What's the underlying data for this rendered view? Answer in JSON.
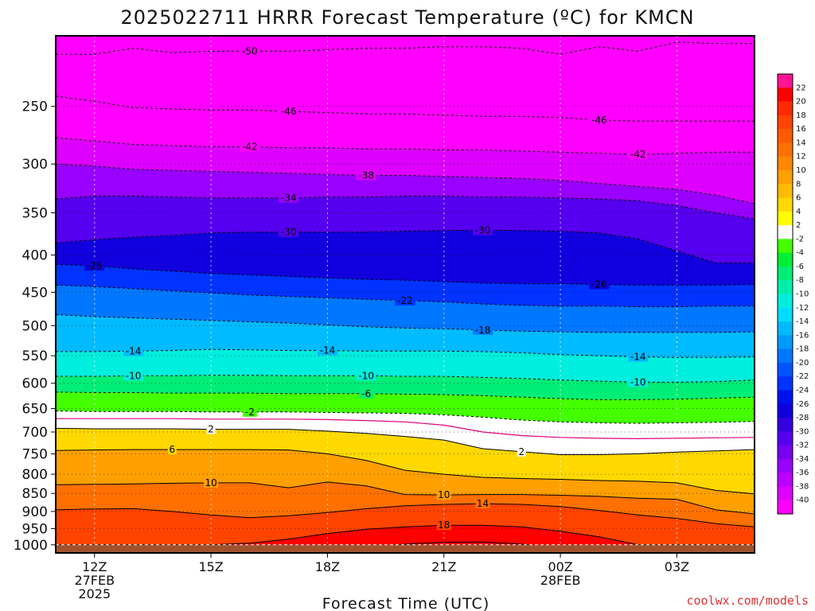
{
  "title": "2025022711 HRRR Forecast Temperature (ºC) for KMCN",
  "xlabel": "Forecast Time (UTC)",
  "credit": "coolwx.com/models",
  "chart_data": {
    "type": "heatmap",
    "title": "2025022711 HRRR Forecast Temperature (ºC) for KMCN",
    "xlabel": "Forecast Time (UTC)",
    "ylabel": "",
    "x_ticks": [
      {
        "hours": 1,
        "lines": [
          "12Z",
          "27FEB",
          "2025"
        ]
      },
      {
        "hours": 4,
        "lines": [
          "15Z"
        ]
      },
      {
        "hours": 7,
        "lines": [
          "18Z"
        ]
      },
      {
        "hours": 10,
        "lines": [
          "21Z"
        ]
      },
      {
        "hours": 13,
        "lines": [
          "00Z",
          "28FEB"
        ]
      },
      {
        "hours": 16,
        "lines": [
          "03Z"
        ]
      }
    ],
    "xlim_hours": [
      0,
      18
    ],
    "y_ticks": [
      250,
      300,
      350,
      400,
      450,
      500,
      550,
      600,
      650,
      700,
      750,
      800,
      850,
      900,
      950,
      1000
    ],
    "ylim_hpa": [
      200,
      1026
    ],
    "y_scale": "log",
    "colorbar": [
      {
        "label": "22",
        "color": "#ff1493"
      },
      {
        "label": "20",
        "color": "#ff0000"
      },
      {
        "label": "18",
        "color": "#ff2a00"
      },
      {
        "label": "16",
        "color": "#ff4400"
      },
      {
        "label": "14",
        "color": "#ff5a00"
      },
      {
        "label": "12",
        "color": "#ff7000"
      },
      {
        "label": "10",
        "color": "#ff8800"
      },
      {
        "label": "8",
        "color": "#ffa000"
      },
      {
        "label": "6",
        "color": "#ffbb00"
      },
      {
        "label": "4",
        "color": "#ffd800"
      },
      {
        "label": "2",
        "color": "#ffff00"
      },
      {
        "label": "-2",
        "color": "#ffffff"
      },
      {
        "label": "-4",
        "color": "#44ff00"
      },
      {
        "label": "-6",
        "color": "#00ee33"
      },
      {
        "label": "-8",
        "color": "#00ee77"
      },
      {
        "label": "-10",
        "color": "#00eeaa"
      },
      {
        "label": "-12",
        "color": "#00eedd"
      },
      {
        "label": "-14",
        "color": "#00ddff"
      },
      {
        "label": "-16",
        "color": "#00bbff"
      },
      {
        "label": "-18",
        "color": "#0099ff"
      },
      {
        "label": "-20",
        "color": "#0077ff"
      },
      {
        "label": "-22",
        "color": "#0055ff"
      },
      {
        "label": "-24",
        "color": "#0033ff"
      },
      {
        "label": "-26",
        "color": "#0011ee"
      },
      {
        "label": "-28",
        "color": "#1100dd"
      },
      {
        "label": "-30",
        "color": "#3300dd"
      },
      {
        "label": "-32",
        "color": "#5500ee"
      },
      {
        "label": "-34",
        "color": "#7700ee"
      },
      {
        "label": "-36",
        "color": "#9900ff"
      },
      {
        "label": "-38",
        "color": "#bb00ff"
      },
      {
        "label": "-40",
        "color": "#dd00ff"
      },
      {
        "label": "",
        "color": "#ff00ff"
      }
    ],
    "below_ground_color": "#a0522d",
    "freezing_line_color": "#e0007a",
    "contours": [
      {
        "value": -50,
        "p": [
          212,
          212,
          208,
          211,
          210,
          210,
          210,
          209,
          208,
          208,
          207,
          207,
          208,
          212,
          207,
          210,
          204,
          205,
          205
        ],
        "labels": [
          {
            "hours": 5,
            "text": "-50"
          }
        ]
      },
      {
        "value": -46,
        "p": [
          242,
          246,
          251,
          252,
          253,
          253,
          254,
          255,
          256,
          256,
          257,
          258,
          258,
          259,
          261,
          262,
          262,
          262,
          262
        ],
        "labels": [
          {
            "hours": 6,
            "text": "-46"
          },
          {
            "hours": 14,
            "text": "-46"
          }
        ]
      },
      {
        "value": -42,
        "p": [
          276,
          279,
          282,
          283,
          284,
          284,
          285,
          285,
          286,
          286,
          287,
          287,
          288,
          289,
          290,
          291,
          290,
          289,
          289
        ],
        "labels": [
          {
            "hours": 5,
            "text": "-42"
          },
          {
            "hours": 15,
            "text": "-42"
          }
        ]
      },
      {
        "value": -38,
        "p": [
          300,
          302,
          305,
          306,
          307,
          308,
          309,
          310,
          311,
          311,
          312,
          313,
          314,
          316,
          319,
          322,
          325,
          331,
          340
        ],
        "labels": [
          {
            "hours": 8,
            "text": "-38"
          }
        ]
      },
      {
        "value": -34,
        "p": [
          335,
          332,
          332,
          333,
          334,
          334,
          334,
          333,
          333,
          332,
          332,
          333,
          333,
          334,
          335,
          337,
          342,
          350,
          357
        ],
        "labels": [
          {
            "hours": 6,
            "text": "-34"
          }
        ]
      },
      {
        "value": -30,
        "p": [
          385,
          381,
          378,
          376,
          373,
          372,
          372,
          372,
          372,
          371,
          370,
          370,
          370,
          371,
          373,
          380,
          395,
          410,
          410
        ],
        "labels": [
          {
            "hours": 6,
            "text": "-30"
          },
          {
            "hours": 11,
            "text": "-30"
          }
        ]
      },
      {
        "value": -26,
        "p": [
          412,
          414,
          418,
          421,
          424,
          426,
          428,
          430,
          432,
          433,
          435,
          437,
          438,
          438,
          439,
          440,
          440,
          440,
          439
        ],
        "labels": [
          {
            "hours": 1,
            "text": "-26"
          },
          {
            "hours": 14,
            "text": "-26"
          }
        ]
      },
      {
        "value": -22,
        "p": [
          440,
          442,
          445,
          448,
          451,
          454,
          456,
          458,
          460,
          462,
          464,
          467,
          469,
          470,
          470,
          471,
          471,
          470,
          470
        ],
        "labels": [
          {
            "hours": 9,
            "text": "-22"
          }
        ]
      },
      {
        "value": -18,
        "p": [
          483,
          486,
          488,
          490,
          492,
          494,
          496,
          499,
          502,
          504,
          505,
          507,
          509,
          510,
          511,
          511,
          511,
          511,
          510
        ],
        "labels": [
          {
            "hours": 11,
            "text": "-18"
          }
        ]
      },
      {
        "value": -14,
        "p": [
          543,
          543,
          542,
          541,
          539,
          540,
          541,
          541,
          542,
          542,
          542,
          543,
          545,
          548,
          550,
          552,
          553,
          553,
          552
        ],
        "labels": [
          {
            "hours": 2,
            "text": "-14"
          },
          {
            "hours": 7,
            "text": "-14"
          },
          {
            "hours": 15,
            "text": "-14"
          }
        ]
      },
      {
        "value": -10,
        "p": [
          587,
          587,
          586,
          586,
          585,
          585,
          586,
          586,
          586,
          587,
          587,
          589,
          591,
          594,
          596,
          598,
          598,
          597,
          594
        ],
        "labels": [
          {
            "hours": 2,
            "text": "-10"
          },
          {
            "hours": 8,
            "text": "-10"
          },
          {
            "hours": 15,
            "text": "-10"
          }
        ]
      },
      {
        "value": -6,
        "p": [
          617,
          618,
          618,
          619,
          619,
          619,
          620,
          620,
          620,
          621,
          622,
          624,
          627,
          630,
          632,
          632,
          631,
          629,
          627
        ],
        "labels": [
          {
            "hours": 8,
            "text": "-6"
          }
        ]
      },
      {
        "value": -2,
        "p": [
          655,
          656,
          656,
          656,
          657,
          657,
          657,
          658,
          659,
          660,
          663,
          668,
          674,
          678,
          680,
          681,
          680,
          679,
          677
        ],
        "labels": [
          {
            "hours": 5,
            "text": "-2"
          }
        ]
      },
      {
        "value": 2,
        "p": [
          692,
          693,
          693,
          693,
          694,
          694,
          694,
          698,
          703,
          710,
          718,
          738,
          745,
          752,
          752,
          750,
          746,
          743,
          740
        ],
        "labels": [
          {
            "hours": 4,
            "text": "2"
          },
          {
            "hours": 12,
            "text": "2"
          }
        ]
      },
      {
        "value": 6,
        "p": [
          742,
          741,
          740,
          740,
          740,
          740,
          741,
          750,
          766,
          790,
          800,
          808,
          811,
          813,
          816,
          818,
          822,
          842,
          851
        ],
        "labels": [
          {
            "hours": 3,
            "text": "6"
          }
        ]
      },
      {
        "value": 10,
        "p": [
          827,
          826,
          825,
          823,
          822,
          822,
          835,
          820,
          830,
          853,
          854,
          853,
          853,
          855,
          858,
          863,
          866,
          895,
          907
        ],
        "labels": [
          {
            "hours": 4,
            "text": "10"
          },
          {
            "hours": 10,
            "text": "10"
          }
        ]
      },
      {
        "value": 14,
        "p": [
          895,
          893,
          892,
          900,
          910,
          918,
          912,
          903,
          892,
          884,
          880,
          878,
          880,
          886,
          897,
          910,
          920,
          935,
          945
        ],
        "labels": [
          {
            "hours": 11,
            "text": "14"
          }
        ]
      },
      {
        "value": 18,
        "p": [
          1000,
          1000,
          1000,
          1000,
          1000,
          995,
          982,
          965,
          952,
          945,
          940,
          940,
          945,
          958,
          975,
          1000,
          1000,
          1000,
          1000
        ],
        "labels": [
          {
            "hours": 10,
            "text": "18"
          }
        ]
      },
      {
        "value": 22,
        "p": [
          1026,
          1026,
          1026,
          1026,
          1026,
          1026,
          1026,
          1026,
          1010,
          998,
          992,
          991,
          998,
          1010,
          1026,
          1026,
          1026,
          1026,
          1026
        ],
        "labels": []
      }
    ],
    "freezing_line_p": [
      671,
      671,
      671,
      671,
      672,
      672,
      672,
      673,
      675,
      678,
      685,
      700,
      708,
      712,
      714,
      715,
      714,
      713,
      712
    ],
    "ground_p": [
      1000,
      1000,
      1000,
      1000,
      1000,
      1000,
      1000,
      1000,
      1000,
      1000,
      1000,
      1000,
      1000,
      1000,
      1000,
      1000,
      1000,
      1000,
      1000
    ]
  }
}
